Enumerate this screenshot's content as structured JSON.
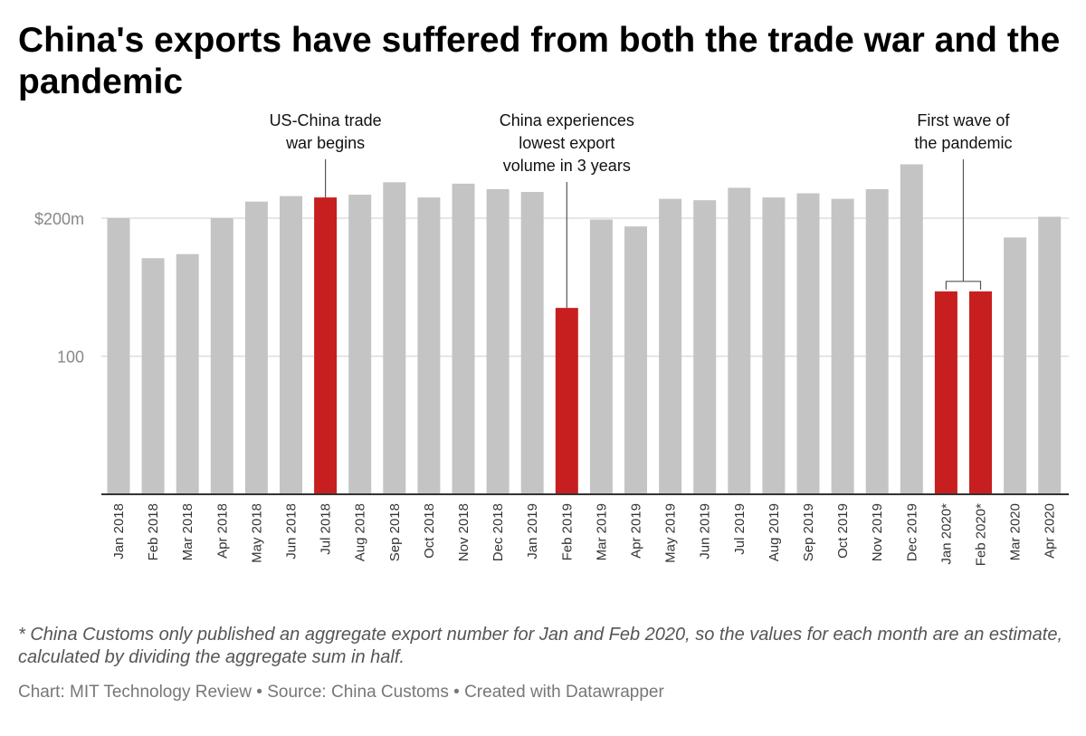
{
  "title": "China's exports have suffered from both the trade war and the pandemic",
  "footnote": "* China Customs only published an aggregate export number for Jan and Feb 2020, so the values for each month are an estimate, calculated by dividing the aggregate sum in half.",
  "credits": "Chart: MIT Technology Review • Source: China Customs • Created with Datawrapper",
  "colors": {
    "default_bar": "#c4c4c4",
    "highlight_bar": "#c71f1f",
    "grid": "#dddddd",
    "axis": "#333333"
  },
  "chart_data": {
    "type": "bar",
    "categories": [
      "Jan 2018",
      "Feb 2018",
      "Mar 2018",
      "Apr 2018",
      "May 2018",
      "Jun 2018",
      "Jul 2018",
      "Aug 2018",
      "Sep 2018",
      "Oct 2018",
      "Nov 2018",
      "Dec 2018",
      "Jan 2019",
      "Feb 2019",
      "Mar 2019",
      "Apr 2019",
      "May 2019",
      "Jun 2019",
      "Jul 2019",
      "Aug 2019",
      "Sep 2019",
      "Oct 2019",
      "Nov 2019",
      "Dec 2019",
      "Jan 2020*",
      "Feb 2020*",
      "Mar 2020",
      "Apr 2020"
    ],
    "values": [
      200,
      171,
      174,
      200,
      212,
      216,
      215,
      217,
      226,
      215,
      225,
      221,
      219,
      135,
      199,
      194,
      214,
      213,
      222,
      215,
      218,
      214,
      221,
      239,
      147,
      147,
      186,
      201
    ],
    "highlighted": [
      "Jul 2018",
      "Feb 2019",
      "Jan 2020*",
      "Feb 2020*"
    ],
    "ylim": [
      0,
      260
    ],
    "yticks": [
      {
        "value": 100,
        "label": "100"
      },
      {
        "value": 200,
        "label": "$200m"
      }
    ],
    "grid": true,
    "legend": "none",
    "annotations": [
      {
        "lines": [
          "US-China trade",
          "war begins"
        ],
        "targets": [
          "Jul 2018"
        ]
      },
      {
        "lines": [
          "China experiences",
          "lowest export",
          "volume in 3 years"
        ],
        "targets": [
          "Feb 2019"
        ]
      },
      {
        "lines": [
          "First wave of",
          "the pandemic"
        ],
        "targets": [
          "Jan 2020*",
          "Feb 2020*"
        ]
      }
    ]
  }
}
